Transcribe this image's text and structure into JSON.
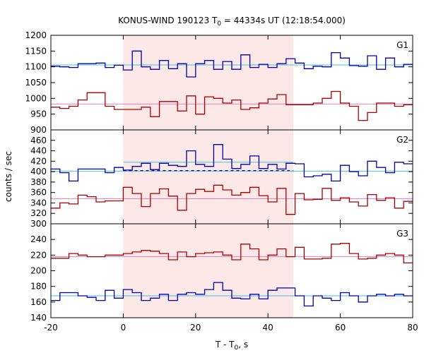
{
  "chart_data": {
    "type": "line",
    "title": {
      "prefix": "KONUS-WIND 190123 T",
      "sub": "0",
      "suffix": " = 44334s UT (12:18:54.000)"
    },
    "xlabel": {
      "prefix": "T - T",
      "sub": "0",
      "suffix": ", s"
    },
    "ylabel": "counts / sec",
    "xlim": [
      -20,
      80
    ],
    "x_ticks": [
      -20,
      0,
      20,
      40,
      60,
      80
    ],
    "x_tick_labels": [
      "-20",
      "0",
      "20",
      "40",
      "60",
      "80"
    ],
    "highlight_interval": {
      "x0": 0,
      "x1": 47,
      "color": "#fde8e8"
    },
    "bin_edges": [
      -20,
      -17.5,
      -15,
      -12.5,
      -10,
      -7.5,
      -5,
      -2.5,
      0,
      2.5,
      5,
      7.5,
      10,
      12.5,
      15,
      17.5,
      20,
      22.5,
      25,
      27.5,
      30,
      32.5,
      35,
      37.5,
      40,
      42.5,
      45,
      47.5,
      50,
      52.5,
      55,
      57.5,
      60,
      62.5,
      65,
      67.5,
      70,
      72.5,
      75,
      77.5,
      80
    ],
    "colors": {
      "blue": "#0000a8",
      "red": "#a80000",
      "cyan": "#40c0e0",
      "pink": "#f080c0"
    },
    "panels": [
      {
        "label": "G1",
        "ylim": [
          900,
          1200
        ],
        "y_ticks": [
          900,
          950,
          1000,
          1050,
          1100,
          1150,
          1200
        ],
        "y_tick_labels": [
          "900",
          "950",
          "1000",
          "1050",
          "1100",
          "1150",
          "1200"
        ],
        "series": [
          {
            "color": "blue",
            "values": [
              1102,
              1100,
              1098,
              1110,
              1110,
              1112,
              1098,
              1105,
              1090,
              1150,
              1100,
              1092,
              1120,
              1094,
              1110,
              1068,
              1110,
              1120,
              1092,
              1117,
              1092,
              1138,
              1098,
              1108,
              1098,
              1110,
              1126,
              1112,
              1094,
              1102,
              1100,
              1145,
              1128,
              1104,
              1102,
              1135,
              1092,
              1128,
              1100,
              1108
            ]
          },
          {
            "color": "red",
            "values": [
              972,
              968,
              975,
              995,
              1018,
              1018,
              975,
              965,
              965,
              965,
              972,
              942,
              990,
              990,
              960,
              1008,
              950,
              1005,
              1000,
              985,
              995,
              965,
              970,
              985,
              998,
              1012,
              980,
              980,
              980,
              985,
              1000,
              1022,
              985,
              975,
              930,
              955,
              985,
              985,
              975,
              980
            ]
          }
        ],
        "fits": [
          {
            "color": "cyan",
            "x0": -20,
            "x1": 80,
            "y0": 1106,
            "y1": 1106
          },
          {
            "color": "pink",
            "x0": -20,
            "x1": 80,
            "y0": 982,
            "y1": 982
          }
        ]
      },
      {
        "label": "G2",
        "ylim": [
          300,
          480
        ],
        "y_ticks": [
          300,
          320,
          340,
          360,
          380,
          400,
          420,
          440,
          460
        ],
        "y_tick_labels": [
          "300",
          "320",
          "340",
          "360",
          "380",
          "400",
          "420",
          "440",
          "460"
        ],
        "series": [
          {
            "color": "blue",
            "values": [
              405,
              398,
              382,
              405,
              405,
              405,
              398,
              408,
              403,
              410,
              416,
              404,
              416,
              412,
              410,
              440,
              414,
              410,
              452,
              424,
              406,
              414,
              430,
              406,
              414,
              405,
              416,
              415,
              390,
              392,
              395,
              382,
              412,
              400,
              392,
              420,
              408,
              398,
              418,
              415
            ]
          },
          {
            "color": "red",
            "values": [
              330,
              340,
              338,
              355,
              352,
              342,
              344,
              344,
              370,
              358,
              333,
              358,
              367,
              353,
              326,
              358,
              366,
              362,
              374,
              365,
              355,
              360,
              370,
              354,
              342,
              368,
              318,
              358,
              346,
              347,
              368,
              345,
              350,
              342,
              334,
              356,
              345,
              350,
              330,
              343
            ]
          }
        ],
        "fits": [
          {
            "color": "cyan",
            "x0": -20,
            "x1": 80,
            "y0": 401,
            "y1": 401
          },
          {
            "color": "cyan",
            "x0": 0,
            "x1": 47,
            "y0": 418,
            "y1": 418
          },
          {
            "color": "pink",
            "x0": -20,
            "x1": 80,
            "y0": 348,
            "y1": 348
          }
        ],
        "dashed": [
          {
            "color": "blue",
            "x0": 0,
            "x1": 47,
            "y0": 402,
            "y1": 402
          }
        ]
      },
      {
        "label": "G3",
        "ylim": [
          140,
          260
        ],
        "y_ticks": [
          140,
          160,
          180,
          200,
          220,
          240
        ],
        "y_tick_labels": [
          "140",
          "160",
          "180",
          "200",
          "220",
          "240"
        ],
        "series": [
          {
            "color": "red",
            "values": [
              216,
              216,
              222,
              220,
              218,
              218,
              220,
              220,
              222,
              224,
              226,
              225,
              222,
              214,
              224,
              218,
              222,
              223,
              224,
              220,
              214,
              234,
              228,
              214,
              220,
              228,
              218,
              230,
              215,
              215,
              216,
              234,
              235,
              222,
              215,
              216,
              220,
              222,
              220,
              210
            ]
          },
          {
            "color": "blue",
            "values": [
              162,
              172,
              172,
              168,
              166,
              162,
              175,
              165,
              176,
              172,
              162,
              165,
              170,
              162,
              170,
              172,
              170,
              176,
              185,
              175,
              165,
              164,
              170,
              164,
              175,
              178,
              178,
              168,
              155,
              168,
              165,
              162,
              172,
              168,
              160,
              168,
              170,
              168,
              170,
              168
            ]
          }
        ],
        "fits": [
          {
            "color": "pink",
            "x0": -20,
            "x1": 80,
            "y0": 218,
            "y1": 218
          },
          {
            "color": "cyan",
            "x0": -20,
            "x1": 80,
            "y0": 168,
            "y1": 168
          }
        ]
      }
    ]
  }
}
